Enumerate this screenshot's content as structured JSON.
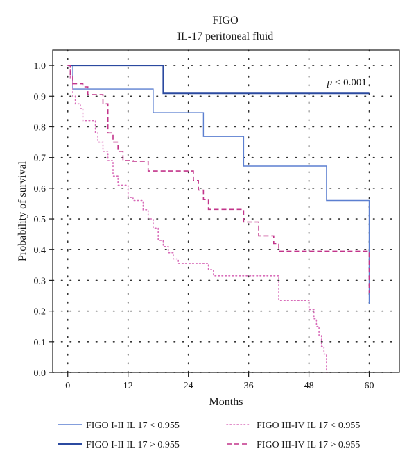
{
  "chart_data": {
    "type": "line",
    "title": "FIGO",
    "subtitle": "IL-17 peritoneal fluid",
    "xlabel": "Months",
    "ylabel": "Probability of survival",
    "xlim": [
      -3,
      66
    ],
    "ylim": [
      0,
      1.05
    ],
    "xticks": [
      0,
      12,
      24,
      36,
      48,
      60
    ],
    "yticks": [
      0.0,
      0.1,
      0.2,
      0.3,
      0.4,
      0.5,
      0.6,
      0.7,
      0.8,
      0.9,
      1.0
    ],
    "grid": true,
    "annotation": {
      "italic": "p",
      "rest": " < 0.001",
      "x": 59.5,
      "y": 0.935
    },
    "legend_position": "bottom",
    "series": [
      {
        "name": "FIGO I-II IL 17 < 0.955",
        "color": "#5b7fd0",
        "style": "solid-thin",
        "points": [
          [
            0,
            1.0
          ],
          [
            1,
            1.0
          ],
          [
            1,
            0.923
          ],
          [
            17,
            0.923
          ],
          [
            17,
            0.846
          ],
          [
            27,
            0.846
          ],
          [
            27,
            0.769
          ],
          [
            35,
            0.769
          ],
          [
            35,
            0.672
          ],
          [
            51.5,
            0.672
          ],
          [
            51.5,
            0.56
          ],
          [
            60,
            0.56
          ],
          [
            60,
            0.224
          ]
        ]
      },
      {
        "name": "FIGO I-II IL 17 > 0.955",
        "color": "#2b4aa0",
        "style": "solid-thick",
        "points": [
          [
            0,
            1.0
          ],
          [
            19,
            1.0
          ],
          [
            19,
            0.909
          ],
          [
            60,
            0.909
          ]
        ]
      },
      {
        "name": "FIGO III-IV IL 17 < 0.955",
        "color": "#d86ab8",
        "style": "dotted",
        "points": [
          [
            0,
            1.0
          ],
          [
            0.5,
            1.0
          ],
          [
            0.5,
            0.96
          ],
          [
            1,
            0.96
          ],
          [
            1,
            0.9
          ],
          [
            1.5,
            0.9
          ],
          [
            1.5,
            0.875
          ],
          [
            2.5,
            0.875
          ],
          [
            2.5,
            0.86
          ],
          [
            3,
            0.86
          ],
          [
            3,
            0.82
          ],
          [
            5.5,
            0.82
          ],
          [
            5.5,
            0.78
          ],
          [
            6,
            0.78
          ],
          [
            6,
            0.75
          ],
          [
            7,
            0.75
          ],
          [
            7,
            0.72
          ],
          [
            8,
            0.72
          ],
          [
            8,
            0.69
          ],
          [
            9,
            0.69
          ],
          [
            9,
            0.64
          ],
          [
            10,
            0.64
          ],
          [
            10,
            0.61
          ],
          [
            12,
            0.61
          ],
          [
            12,
            0.57
          ],
          [
            13,
            0.57
          ],
          [
            13,
            0.56
          ],
          [
            15,
            0.56
          ],
          [
            15,
            0.53
          ],
          [
            16,
            0.53
          ],
          [
            16,
            0.5
          ],
          [
            17,
            0.5
          ],
          [
            17,
            0.47
          ],
          [
            18,
            0.47
          ],
          [
            18,
            0.43
          ],
          [
            19,
            0.43
          ],
          [
            19,
            0.41
          ],
          [
            20,
            0.41
          ],
          [
            20,
            0.39
          ],
          [
            21,
            0.39
          ],
          [
            21,
            0.37
          ],
          [
            22,
            0.37
          ],
          [
            22,
            0.355
          ],
          [
            28,
            0.355
          ],
          [
            28,
            0.335
          ],
          [
            29,
            0.335
          ],
          [
            29,
            0.315
          ],
          [
            42,
            0.315
          ],
          [
            42,
            0.235
          ],
          [
            48,
            0.235
          ],
          [
            48,
            0.205
          ],
          [
            49,
            0.205
          ],
          [
            49,
            0.175
          ],
          [
            49.5,
            0.175
          ],
          [
            49.5,
            0.15
          ],
          [
            50,
            0.15
          ],
          [
            50,
            0.12
          ],
          [
            50.5,
            0.12
          ],
          [
            50.5,
            0.085
          ],
          [
            51,
            0.085
          ],
          [
            51,
            0.06
          ],
          [
            51.5,
            0.06
          ],
          [
            51.5,
            0.0
          ],
          [
            52,
            0.0
          ]
        ]
      },
      {
        "name": "FIGO III-IV IL 17 > 0.955",
        "color": "#c2348a",
        "style": "dashed",
        "points": [
          [
            0,
            1.0
          ],
          [
            0.5,
            1.0
          ],
          [
            0.5,
            0.965
          ],
          [
            1,
            0.965
          ],
          [
            1,
            0.94
          ],
          [
            3,
            0.94
          ],
          [
            3,
            0.93
          ],
          [
            4,
            0.93
          ],
          [
            4,
            0.905
          ],
          [
            7,
            0.905
          ],
          [
            7,
            0.875
          ],
          [
            8,
            0.875
          ],
          [
            8,
            0.78
          ],
          [
            9,
            0.78
          ],
          [
            9,
            0.75
          ],
          [
            10,
            0.75
          ],
          [
            10,
            0.72
          ],
          [
            11,
            0.72
          ],
          [
            11,
            0.69
          ],
          [
            13,
            0.69
          ],
          [
            13,
            0.688
          ],
          [
            16,
            0.688
          ],
          [
            16,
            0.656
          ],
          [
            25,
            0.656
          ],
          [
            25,
            0.625
          ],
          [
            26,
            0.625
          ],
          [
            26,
            0.594
          ],
          [
            27,
            0.594
          ],
          [
            27,
            0.563
          ],
          [
            28,
            0.563
          ],
          [
            28,
            0.531
          ],
          [
            35,
            0.531
          ],
          [
            35,
            0.49
          ],
          [
            38,
            0.49
          ],
          [
            38,
            0.445
          ],
          [
            41,
            0.445
          ],
          [
            41,
            0.42
          ],
          [
            42,
            0.42
          ],
          [
            42,
            0.395
          ],
          [
            60,
            0.395
          ],
          [
            60,
            0.26
          ]
        ]
      }
    ]
  }
}
